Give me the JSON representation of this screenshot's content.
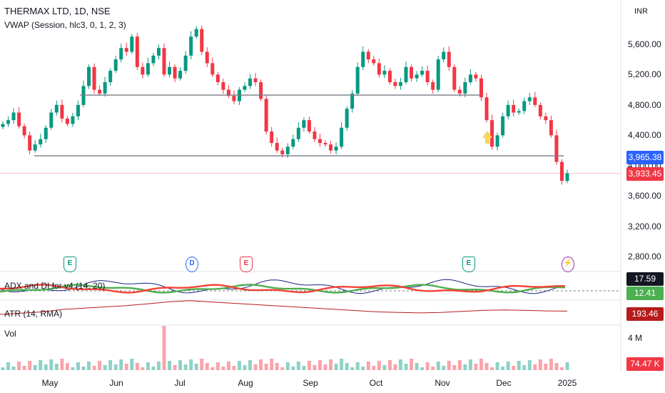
{
  "header": {
    "title": "THERMAX LTD, 1D, NSE",
    "vwap_label": "VWAP (Session, hlc3, 0, 1, 2, 3)",
    "currency": "INR"
  },
  "price_tags": {
    "vwap": "3,965.38",
    "last": "3,933.45",
    "vwap_color": "#2962ff",
    "last_color": "#f23645"
  },
  "indicators": {
    "adx_label": "ADX and DI for v4 (14, 20)",
    "adx_value_1": "17.59",
    "adx_value_2": "12.41",
    "atr_label": "ATR (14, RMA)",
    "atr_value": "193.46",
    "vol_label": "Vol",
    "vol_axis": "4 M",
    "vol_value": "74.47 K"
  },
  "events": [
    {
      "label": "E",
      "color": "#089981"
    },
    {
      "label": "D",
      "color": "#2962ff"
    },
    {
      "label": "E",
      "color": "#f23645"
    },
    {
      "label": "E",
      "color": "#089981"
    },
    {
      "label": "⚡",
      "color": "#9c27b0"
    }
  ],
  "chart_data": {
    "type": "candlestick",
    "title": "THERMAX LTD, 1D, NSE",
    "y_ticks": [
      "5,600.00",
      "5,200.00",
      "4,800.00",
      "4,400.00",
      "4,000.00",
      "3,600.00",
      "3,200.00",
      "2,800.00"
    ],
    "x_ticks": [
      "May",
      "Jun",
      "Jul",
      "Aug",
      "Sep",
      "Oct",
      "Nov",
      "Dec",
      "2025"
    ],
    "ylim": [
      2700,
      5900
    ],
    "colors": {
      "up": "#089981",
      "down": "#f23645"
    },
    "support_lines": [
      4930,
      4130
    ],
    "close_series": [
      4550,
      4600,
      4700,
      4520,
      4400,
      4200,
      4280,
      4350,
      4500,
      4700,
      4800,
      4620,
      4550,
      4650,
      4800,
      5050,
      5300,
      5000,
      4950,
      5100,
      5250,
      5400,
      5550,
      5500,
      5700,
      5300,
      5200,
      5350,
      5450,
      5550,
      5200,
      5300,
      5150,
      5250,
      5450,
      5700,
      5800,
      5500,
      5350,
      5200,
      5100,
      5000,
      4920,
      4850,
      5000,
      5050,
      5150,
      5100,
      4880,
      4450,
      4300,
      4200,
      4150,
      4250,
      4350,
      4500,
      4600,
      4450,
      4350,
      4300,
      4280,
      4200,
      4250,
      4500,
      4750,
      4950,
      5300,
      5500,
      5400,
      5350,
      5200,
      5250,
      5100,
      5050,
      5100,
      5300,
      5150,
      5200,
      5250,
      5100,
      5000,
      5400,
      5500,
      5300,
      5000,
      4950,
      5100,
      5200,
      5150,
      4900,
      4600,
      4250,
      4400,
      4650,
      4800,
      4700,
      4720,
      4850,
      4900,
      4800,
      4650,
      4600,
      4400,
      4050,
      3800,
      3900
    ],
    "atr_series": [
      180,
      185,
      190,
      200,
      205,
      210,
      215,
      222,
      230,
      235,
      230,
      225,
      220,
      215,
      210,
      205,
      200,
      195,
      190,
      188,
      186,
      188,
      192,
      196,
      198,
      196,
      194,
      193
    ]
  }
}
